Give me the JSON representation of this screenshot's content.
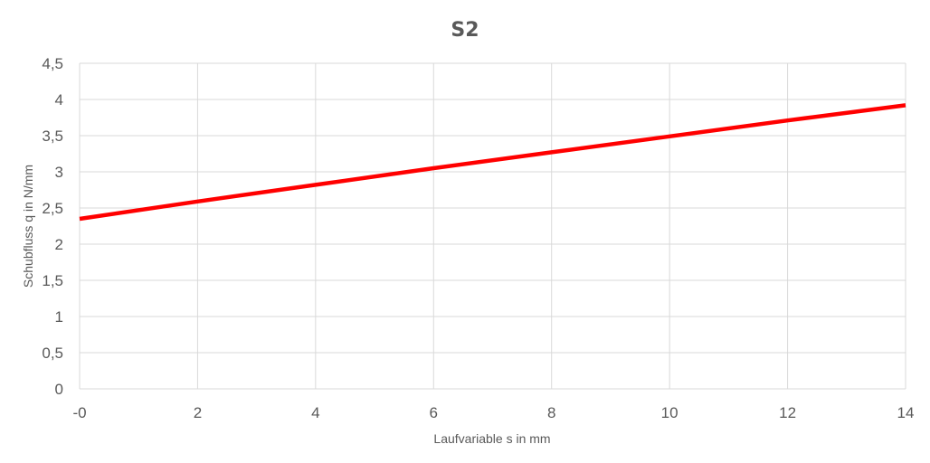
{
  "chart_data": {
    "type": "line",
    "title": "S2",
    "xlabel": "Laufvariable s in mm",
    "ylabel": "Schubfluss q in N/mm",
    "xlim": [
      0,
      14
    ],
    "ylim": [
      0,
      4.5
    ],
    "x_ticks": [
      0,
      2,
      4,
      6,
      8,
      10,
      12,
      14
    ],
    "x_tick_labels": [
      "-0",
      "2",
      "4",
      "6",
      "8",
      "10",
      "12",
      "14"
    ],
    "y_ticks": [
      0,
      0.5,
      1,
      1.5,
      2,
      2.5,
      3,
      3.5,
      4,
      4.5
    ],
    "y_tick_labels": [
      "0",
      "0,5",
      "1",
      "1,5",
      "2",
      "2,5",
      "3",
      "3,5",
      "4",
      "4,5"
    ],
    "grid": true,
    "legend": "none",
    "series": [
      {
        "color": "#ff0000",
        "points": [
          {
            "x": 0,
            "y": 2.35
          },
          {
            "x": 2,
            "y": 2.59
          },
          {
            "x": 4,
            "y": 2.82
          },
          {
            "x": 6,
            "y": 3.05
          },
          {
            "x": 8,
            "y": 3.27
          },
          {
            "x": 10,
            "y": 3.49
          },
          {
            "x": 12,
            "y": 3.71
          },
          {
            "x": 14,
            "y": 3.92
          }
        ]
      }
    ]
  }
}
